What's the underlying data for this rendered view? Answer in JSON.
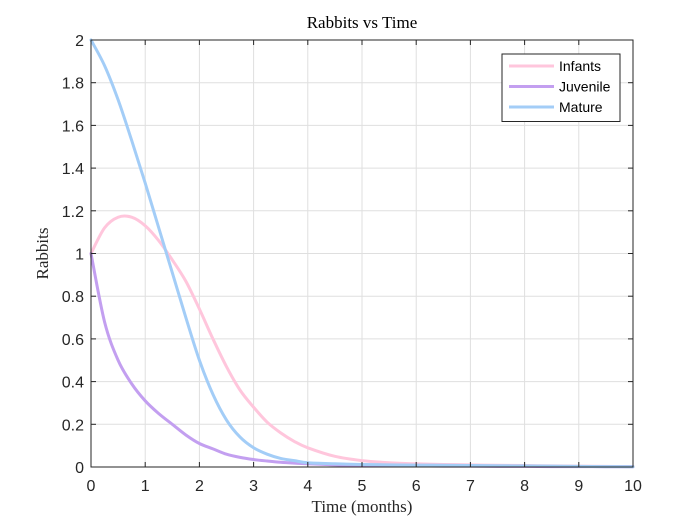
{
  "chart_data": {
    "type": "line",
    "title": "Rabbits vs Time",
    "xlabel": "Time (months)",
    "ylabel": "Rabbits",
    "xlim": [
      0,
      10
    ],
    "ylim": [
      0,
      2
    ],
    "xticks": [
      "0",
      "1",
      "2",
      "3",
      "4",
      "5",
      "6",
      "7",
      "8",
      "9",
      "10"
    ],
    "yticks": [
      "0",
      "0.2",
      "0.4",
      "0.6",
      "0.8",
      "1",
      "1.2",
      "1.4",
      "1.6",
      "1.8",
      "2"
    ],
    "grid": true,
    "legend_position": "top-right",
    "x": [
      0,
      0.25,
      0.5,
      0.75,
      1,
      1.25,
      1.5,
      1.75,
      2,
      2.25,
      2.5,
      2.75,
      3,
      3.25,
      3.5,
      3.75,
      4,
      4.5,
      5,
      5.5,
      6,
      6.5,
      7,
      7.5,
      8,
      8.5,
      9,
      9.5,
      10
    ],
    "series": [
      {
        "name": "Infants",
        "color": "#ffc6dc",
        "values": [
          1.0,
          1.12,
          1.17,
          1.17,
          1.13,
          1.06,
          0.97,
          0.87,
          0.74,
          0.6,
          0.47,
          0.36,
          0.28,
          0.21,
          0.16,
          0.12,
          0.09,
          0.05,
          0.03,
          0.02,
          0.015,
          0.012,
          0.01,
          0.008,
          0.007,
          0.005,
          0.004,
          0.003,
          0.002
        ]
      },
      {
        "name": "Juvenile",
        "color": "#c39ff0",
        "values": [
          1.0,
          0.68,
          0.5,
          0.39,
          0.31,
          0.25,
          0.2,
          0.15,
          0.11,
          0.085,
          0.06,
          0.045,
          0.035,
          0.028,
          0.022,
          0.018,
          0.015,
          0.01,
          0.008,
          0.006,
          0.005,
          0.004,
          0.004,
          0.003,
          0.003,
          0.002,
          0.002,
          0.001,
          0.001
        ]
      },
      {
        "name": "Mature",
        "color": "#a3cdf7",
        "values": [
          2.0,
          1.88,
          1.72,
          1.53,
          1.33,
          1.12,
          0.91,
          0.7,
          0.5,
          0.34,
          0.22,
          0.14,
          0.09,
          0.06,
          0.04,
          0.03,
          0.02,
          0.015,
          0.012,
          0.01,
          0.009,
          0.008,
          0.007,
          0.006,
          0.005,
          0.004,
          0.003,
          0.002,
          0.001
        ]
      }
    ]
  }
}
